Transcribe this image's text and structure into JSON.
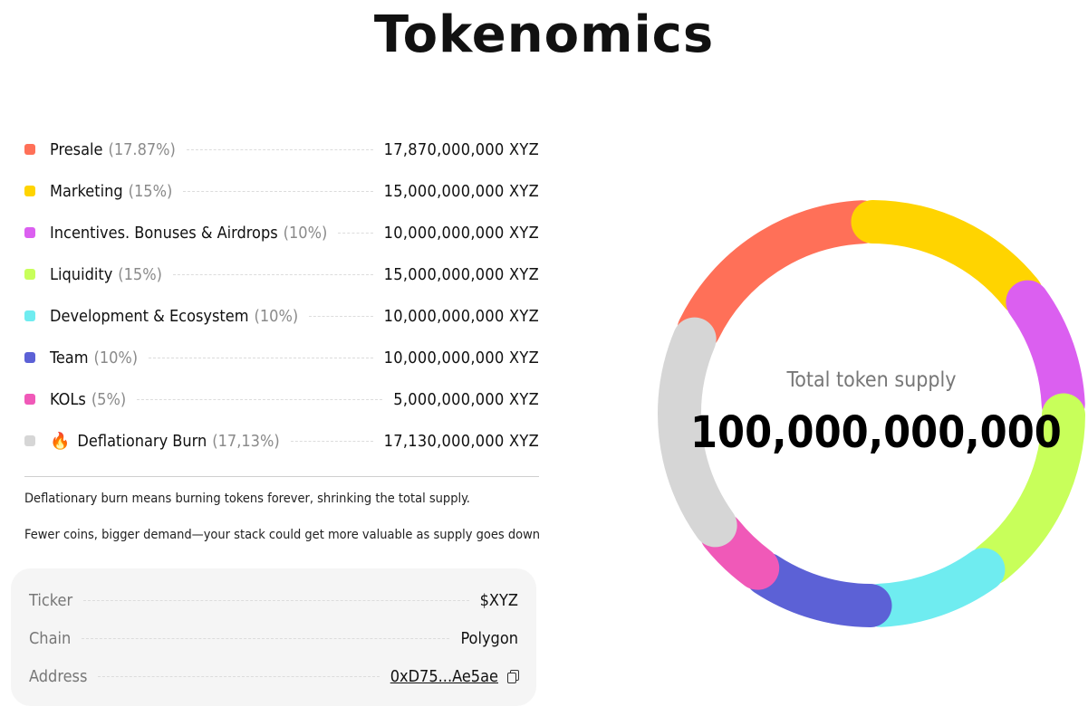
{
  "title": "Tokenomics",
  "chart_data": {
    "type": "pie",
    "variant": "donut",
    "center_label": "Total token supply",
    "center_value": "100,000,000,000",
    "unit": "XYZ",
    "categories": [
      {
        "name": "Presale",
        "pct_label": "(17.87%)",
        "value": 17.87,
        "amount": "17,870,000,000 XYZ",
        "color": "#FF7058",
        "icon": ""
      },
      {
        "name": "Marketing",
        "pct_label": "(15%)",
        "value": 15,
        "amount": "15,000,000,000 XYZ",
        "color": "#FFD400",
        "icon": ""
      },
      {
        "name": "Incentives. Bonuses & Airdrops",
        "pct_label": "(10%)",
        "value": 10,
        "amount": "10,000,000,000 XYZ",
        "color": "#DB5FF0",
        "icon": ""
      },
      {
        "name": "Liquidity",
        "pct_label": "(15%)",
        "value": 15,
        "amount": "15,000,000,000 XYZ",
        "color": "#C8FF5A",
        "icon": ""
      },
      {
        "name": "Development & Ecosystem",
        "pct_label": "(10%)",
        "value": 10,
        "amount": "10,000,000,000 XYZ",
        "color": "#6FECF0",
        "icon": ""
      },
      {
        "name": "Team",
        "pct_label": "(10%)",
        "value": 10,
        "amount": "10,000,000,000 XYZ",
        "color": "#5C61D6",
        "icon": ""
      },
      {
        "name": "KOLs",
        "pct_label": "(5%)",
        "value": 5,
        "amount": "5,000,000,000 XYZ",
        "color": "#F059B8",
        "icon": ""
      },
      {
        "name": "Deflationary Burn",
        "pct_label": "(17,13%)",
        "value": 17.13,
        "amount": "17,130,000,000 XYZ",
        "color": "#D6D6D6",
        "icon": "🔥"
      }
    ]
  },
  "notes": [
    "Deflationary burn means burning tokens forever, shrinking the total supply.",
    "Fewer coins, bigger demand—your stack could get more valuable as supply goes down"
  ],
  "info": {
    "ticker_label": "Ticker",
    "ticker_value": "$XYZ",
    "chain_label": "Chain",
    "chain_value": "Polygon",
    "address_label": "Address",
    "address_value": "0xD75...Ae5ae"
  }
}
